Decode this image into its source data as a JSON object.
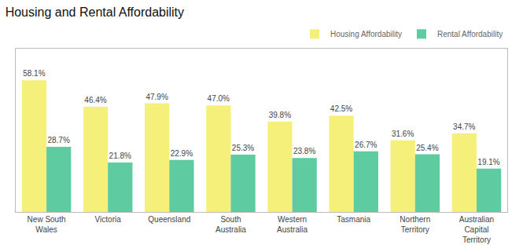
{
  "chart_data": {
    "type": "bar",
    "title": "Housing and Rental Affordability",
    "categories": [
      "New South\nWales",
      "Victoria",
      "Queensland",
      "South\nAustralia",
      "Western\nAustralia",
      "Tasmania",
      "Northern\nTerritory",
      "Australian\nCapital\nTerritory"
    ],
    "series": [
      {
        "name": "Housing Affordability",
        "color": "#F5F07A",
        "values": [
          58.1,
          46.4,
          47.9,
          47.0,
          39.8,
          42.5,
          31.6,
          34.7
        ],
        "value_labels": [
          "58.1%",
          "46.4%",
          "47.9%",
          "47.0%",
          "39.8%",
          "42.5%",
          "31.6%",
          "34.7%"
        ]
      },
      {
        "name": "Rental Affordability",
        "color": "#5ECBA1",
        "values": [
          28.7,
          21.8,
          22.9,
          25.3,
          23.8,
          26.7,
          25.4,
          19.1
        ],
        "value_labels": [
          "28.7%",
          "21.8%",
          "22.9%",
          "25.3%",
          "23.8%",
          "26.7%",
          "25.4%",
          "19.1%"
        ]
      }
    ],
    "ylim": [
      0,
      72
    ],
    "data_labels": true,
    "tick_labels": "x",
    "legend": "upper right",
    "grid": false
  }
}
